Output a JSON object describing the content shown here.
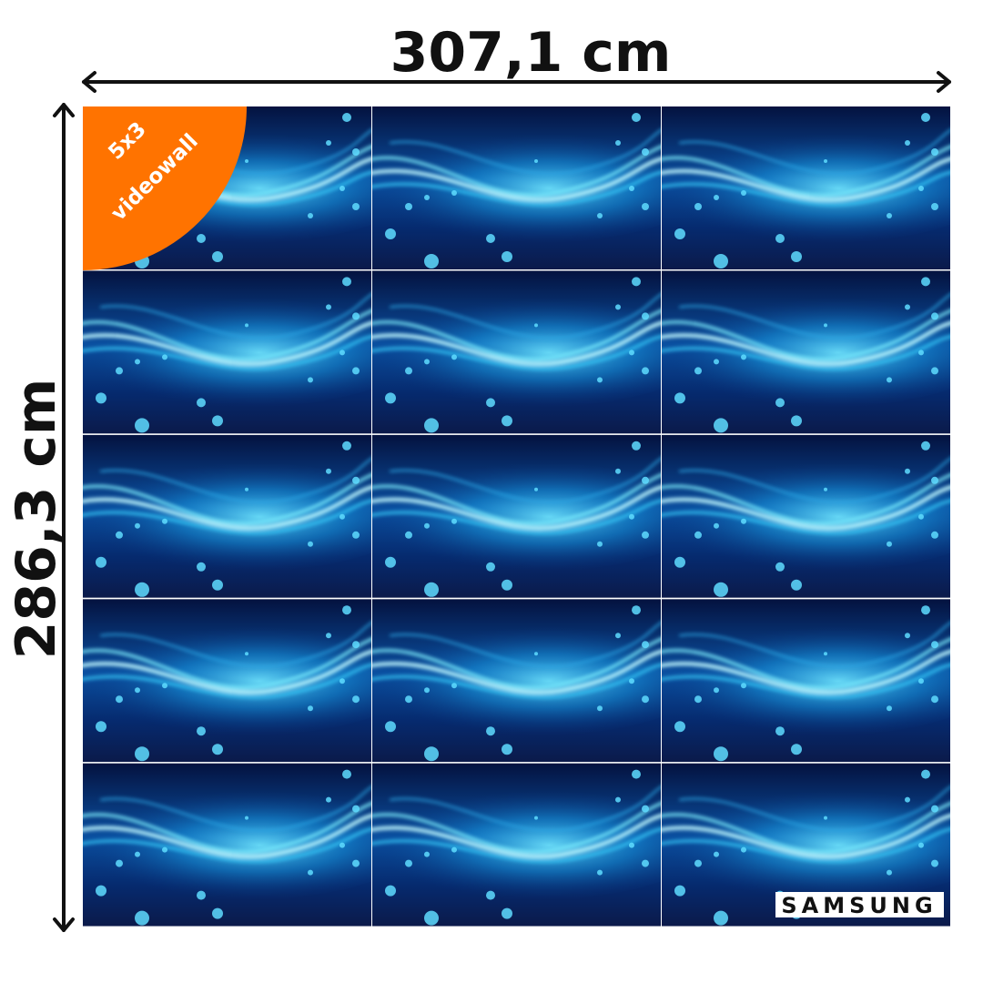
{
  "width_label": "307,1 cm",
  "height_label": "286,3 cm",
  "badge": {
    "line1": "5x3",
    "line2": "videowall"
  },
  "brand": "SAMSUNG"
}
